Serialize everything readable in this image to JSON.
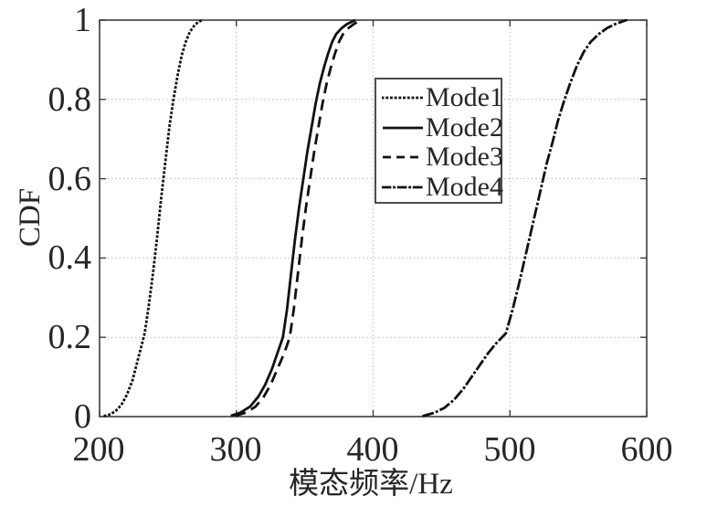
{
  "figure": {
    "background": "#ffffff",
    "axis_color": "#3d3d3d",
    "grid_color": "#b9b9b9",
    "text_color": "#262626",
    "curve_color": "#111111",
    "legend_border_color": "#4c4c4c"
  },
  "chart_data": {
    "type": "line",
    "subtype": "empirical-cdf",
    "title": "",
    "xlabel": "模态频率/Hz",
    "ylabel": "CDF",
    "xlim": [
      200,
      600
    ],
    "ylim": [
      0,
      1
    ],
    "grid": true,
    "xticks": {
      "values": [
        200,
        300,
        400,
        500,
        600
      ],
      "labels": [
        "200",
        "300",
        "400",
        "500",
        "600"
      ]
    },
    "yticks": {
      "values": [
        0,
        0.2,
        0.4,
        0.6,
        0.8,
        1
      ],
      "labels": [
        "0",
        "0.2",
        "0.4",
        "0.6",
        "0.8",
        "1"
      ]
    },
    "legend": {
      "position": "upper-center-right",
      "entries": [
        "Mode1",
        "Mode2",
        "Mode3",
        "Mode4"
      ]
    },
    "series": [
      {
        "name": "Mode1",
        "line_style": "dotted",
        "color": "#111111",
        "points": [
          [
            204,
            0.002
          ],
          [
            208,
            0.006
          ],
          [
            212,
            0.015
          ],
          [
            216,
            0.03
          ],
          [
            220,
            0.055
          ],
          [
            224,
            0.09
          ],
          [
            227,
            0.13
          ],
          [
            230,
            0.17
          ],
          [
            233,
            0.21
          ],
          [
            236,
            0.28
          ],
          [
            239,
            0.36
          ],
          [
            242,
            0.45
          ],
          [
            245,
            0.55
          ],
          [
            248,
            0.64
          ],
          [
            251,
            0.73
          ],
          [
            254,
            0.8
          ],
          [
            257,
            0.86
          ],
          [
            260,
            0.91
          ],
          [
            263,
            0.945
          ],
          [
            266,
            0.97
          ],
          [
            269,
            0.985
          ],
          [
            272,
            0.995
          ],
          [
            275,
            1.0
          ]
        ]
      },
      {
        "name": "Mode2",
        "line_style": "solid",
        "color": "#111111",
        "points": [
          [
            296,
            0.002
          ],
          [
            303,
            0.01
          ],
          [
            310,
            0.025
          ],
          [
            316,
            0.05
          ],
          [
            321,
            0.08
          ],
          [
            326,
            0.12
          ],
          [
            330,
            0.16
          ],
          [
            334,
            0.2
          ],
          [
            337,
            0.27
          ],
          [
            340,
            0.36
          ],
          [
            343,
            0.45
          ],
          [
            346,
            0.53
          ],
          [
            349,
            0.6
          ],
          [
            352,
            0.67
          ],
          [
            355,
            0.73
          ],
          [
            358,
            0.79
          ],
          [
            361,
            0.84
          ],
          [
            364,
            0.88
          ],
          [
            367,
            0.915
          ],
          [
            370,
            0.945
          ],
          [
            373,
            0.965
          ],
          [
            377,
            0.98
          ],
          [
            381,
            0.99
          ],
          [
            387,
            1.0
          ]
        ]
      },
      {
        "name": "Mode3",
        "line_style": "dashed",
        "color": "#111111",
        "points": [
          [
            299,
            0.002
          ],
          [
            307,
            0.01
          ],
          [
            314,
            0.025
          ],
          [
            320,
            0.05
          ],
          [
            325,
            0.08
          ],
          [
            330,
            0.12
          ],
          [
            335,
            0.16
          ],
          [
            339,
            0.2
          ],
          [
            342,
            0.27
          ],
          [
            345,
            0.36
          ],
          [
            348,
            0.45
          ],
          [
            351,
            0.53
          ],
          [
            354,
            0.6
          ],
          [
            357,
            0.67
          ],
          [
            360,
            0.73
          ],
          [
            363,
            0.79
          ],
          [
            366,
            0.84
          ],
          [
            369,
            0.88
          ],
          [
            372,
            0.915
          ],
          [
            375,
            0.945
          ],
          [
            378,
            0.965
          ],
          [
            382,
            0.98
          ],
          [
            386,
            0.99
          ],
          [
            391,
            1.0
          ]
        ]
      },
      {
        "name": "Mode4",
        "line_style": "dashdot",
        "color": "#111111",
        "points": [
          [
            437,
            0.002
          ],
          [
            445,
            0.01
          ],
          [
            452,
            0.022
          ],
          [
            459,
            0.042
          ],
          [
            466,
            0.07
          ],
          [
            472,
            0.1
          ],
          [
            478,
            0.13
          ],
          [
            484,
            0.16
          ],
          [
            490,
            0.185
          ],
          [
            497,
            0.21
          ],
          [
            502,
            0.27
          ],
          [
            507,
            0.34
          ],
          [
            511,
            0.4
          ],
          [
            515,
            0.46
          ],
          [
            519,
            0.52
          ],
          [
            523,
            0.58
          ],
          [
            527,
            0.64
          ],
          [
            531,
            0.69
          ],
          [
            535,
            0.745
          ],
          [
            539,
            0.79
          ],
          [
            544,
            0.84
          ],
          [
            549,
            0.885
          ],
          [
            554,
            0.92
          ],
          [
            559,
            0.945
          ],
          [
            565,
            0.965
          ],
          [
            571,
            0.98
          ],
          [
            577,
            0.99
          ],
          [
            585,
            1.0
          ]
        ]
      }
    ]
  }
}
